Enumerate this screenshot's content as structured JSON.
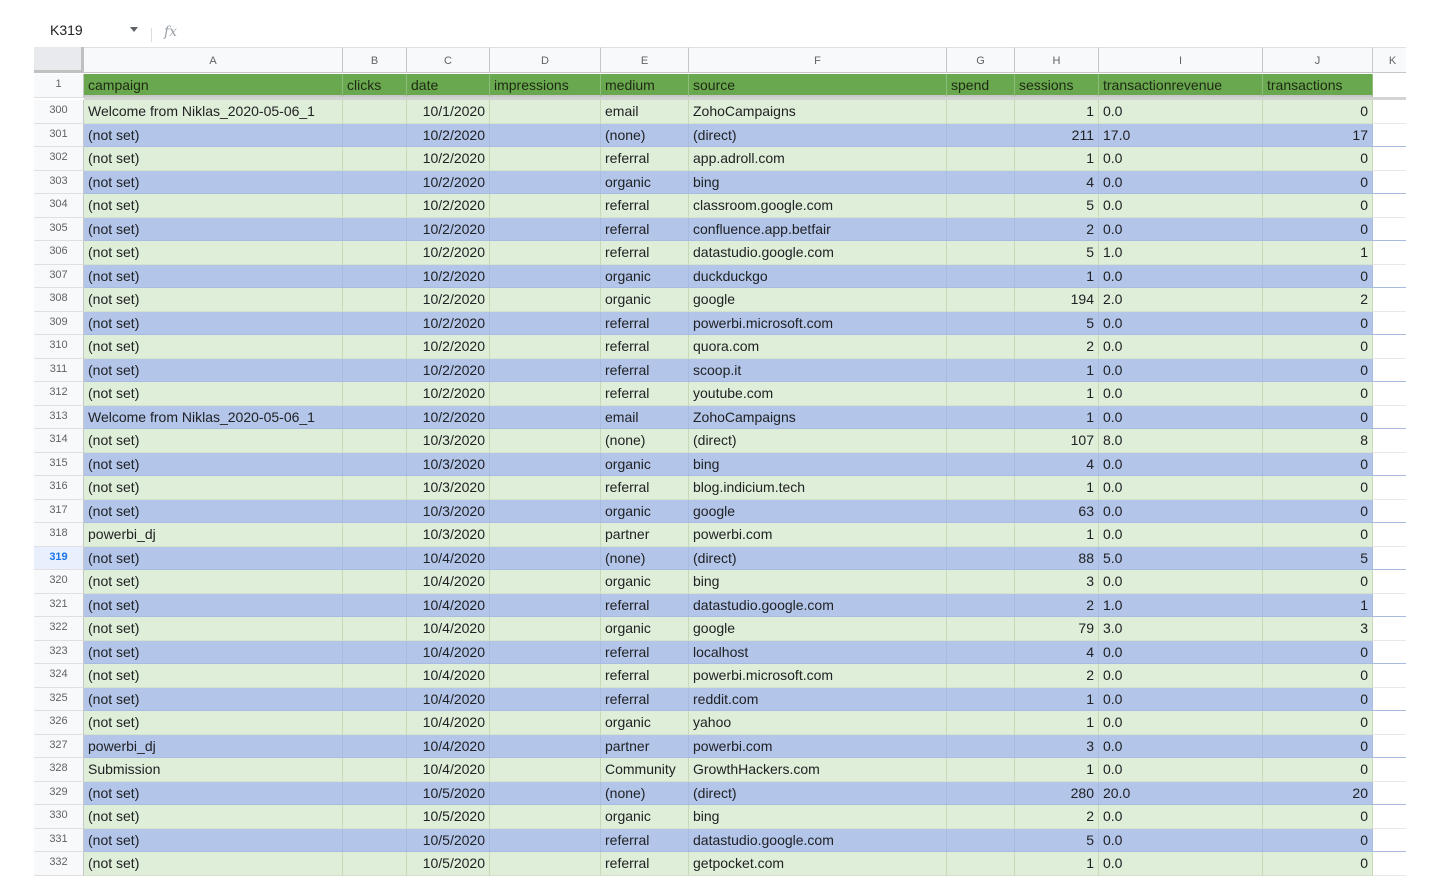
{
  "formula_bar": {
    "name_box": "K319",
    "fx": "fx"
  },
  "columns": [
    "A",
    "B",
    "C",
    "D",
    "E",
    "F",
    "G",
    "H",
    "I",
    "J",
    "K"
  ],
  "headers": [
    "campaign",
    "clicks",
    "date",
    "impressions",
    "medium",
    "source",
    "spend",
    "sessions",
    "transactionrevenue",
    "transactions"
  ],
  "header_row_number": "1",
  "selected_row": "319",
  "rows": [
    {
      "n": "300",
      "campaign": "Welcome from Niklas_2020-05-06_1",
      "date": "10/1/2020",
      "medium": "email",
      "source": "ZohoCampaigns",
      "sessions": "1",
      "revenue": "0.0",
      "transactions": "0"
    },
    {
      "n": "301",
      "campaign": "(not set)",
      "date": "10/2/2020",
      "medium": "(none)",
      "source": "(direct)",
      "sessions": "211",
      "revenue": "17.0",
      "transactions": "17"
    },
    {
      "n": "302",
      "campaign": "(not set)",
      "date": "10/2/2020",
      "medium": "referral",
      "source": "app.adroll.com",
      "sessions": "1",
      "revenue": "0.0",
      "transactions": "0"
    },
    {
      "n": "303",
      "campaign": "(not set)",
      "date": "10/2/2020",
      "medium": "organic",
      "source": "bing",
      "sessions": "4",
      "revenue": "0.0",
      "transactions": "0"
    },
    {
      "n": "304",
      "campaign": "(not set)",
      "date": "10/2/2020",
      "medium": "referral",
      "source": "classroom.google.com",
      "sessions": "5",
      "revenue": "0.0",
      "transactions": "0"
    },
    {
      "n": "305",
      "campaign": "(not set)",
      "date": "10/2/2020",
      "medium": "referral",
      "source": "confluence.app.betfair",
      "sessions": "2",
      "revenue": "0.0",
      "transactions": "0"
    },
    {
      "n": "306",
      "campaign": "(not set)",
      "date": "10/2/2020",
      "medium": "referral",
      "source": "datastudio.google.com",
      "sessions": "5",
      "revenue": "1.0",
      "transactions": "1"
    },
    {
      "n": "307",
      "campaign": "(not set)",
      "date": "10/2/2020",
      "medium": "organic",
      "source": "duckduckgo",
      "sessions": "1",
      "revenue": "0.0",
      "transactions": "0"
    },
    {
      "n": "308",
      "campaign": "(not set)",
      "date": "10/2/2020",
      "medium": "organic",
      "source": "google",
      "sessions": "194",
      "revenue": "2.0",
      "transactions": "2"
    },
    {
      "n": "309",
      "campaign": "(not set)",
      "date": "10/2/2020",
      "medium": "referral",
      "source": "powerbi.microsoft.com",
      "sessions": "5",
      "revenue": "0.0",
      "transactions": "0"
    },
    {
      "n": "310",
      "campaign": "(not set)",
      "date": "10/2/2020",
      "medium": "referral",
      "source": "quora.com",
      "sessions": "2",
      "revenue": "0.0",
      "transactions": "0"
    },
    {
      "n": "311",
      "campaign": "(not set)",
      "date": "10/2/2020",
      "medium": "referral",
      "source": "scoop.it",
      "sessions": "1",
      "revenue": "0.0",
      "transactions": "0"
    },
    {
      "n": "312",
      "campaign": "(not set)",
      "date": "10/2/2020",
      "medium": "referral",
      "source": "youtube.com",
      "sessions": "1",
      "revenue": "0.0",
      "transactions": "0"
    },
    {
      "n": "313",
      "campaign": "Welcome from Niklas_2020-05-06_1",
      "date": "10/2/2020",
      "medium": "email",
      "source": "ZohoCampaigns",
      "sessions": "1",
      "revenue": "0.0",
      "transactions": "0"
    },
    {
      "n": "314",
      "campaign": "(not set)",
      "date": "10/3/2020",
      "medium": "(none)",
      "source": "(direct)",
      "sessions": "107",
      "revenue": "8.0",
      "transactions": "8"
    },
    {
      "n": "315",
      "campaign": "(not set)",
      "date": "10/3/2020",
      "medium": "organic",
      "source": "bing",
      "sessions": "4",
      "revenue": "0.0",
      "transactions": "0"
    },
    {
      "n": "316",
      "campaign": "(not set)",
      "date": "10/3/2020",
      "medium": "referral",
      "source": "blog.indicium.tech",
      "sessions": "1",
      "revenue": "0.0",
      "transactions": "0"
    },
    {
      "n": "317",
      "campaign": "(not set)",
      "date": "10/3/2020",
      "medium": "organic",
      "source": "google",
      "sessions": "63",
      "revenue": "0.0",
      "transactions": "0"
    },
    {
      "n": "318",
      "campaign": "powerbi_dj",
      "date": "10/3/2020",
      "medium": "partner",
      "source": "powerbi.com",
      "sessions": "1",
      "revenue": "0.0",
      "transactions": "0"
    },
    {
      "n": "319",
      "campaign": "(not set)",
      "date": "10/4/2020",
      "medium": "(none)",
      "source": "(direct)",
      "sessions": "88",
      "revenue": "5.0",
      "transactions": "5"
    },
    {
      "n": "320",
      "campaign": "(not set)",
      "date": "10/4/2020",
      "medium": "organic",
      "source": "bing",
      "sessions": "3",
      "revenue": "0.0",
      "transactions": "0"
    },
    {
      "n": "321",
      "campaign": "(not set)",
      "date": "10/4/2020",
      "medium": "referral",
      "source": "datastudio.google.com",
      "sessions": "2",
      "revenue": "1.0",
      "transactions": "1"
    },
    {
      "n": "322",
      "campaign": "(not set)",
      "date": "10/4/2020",
      "medium": "organic",
      "source": "google",
      "sessions": "79",
      "revenue": "3.0",
      "transactions": "3"
    },
    {
      "n": "323",
      "campaign": "(not set)",
      "date": "10/4/2020",
      "medium": "referral",
      "source": "localhost",
      "sessions": "4",
      "revenue": "0.0",
      "transactions": "0"
    },
    {
      "n": "324",
      "campaign": "(not set)",
      "date": "10/4/2020",
      "medium": "referral",
      "source": "powerbi.microsoft.com",
      "sessions": "2",
      "revenue": "0.0",
      "transactions": "0"
    },
    {
      "n": "325",
      "campaign": "(not set)",
      "date": "10/4/2020",
      "medium": "referral",
      "source": "reddit.com",
      "sessions": "1",
      "revenue": "0.0",
      "transactions": "0"
    },
    {
      "n": "326",
      "campaign": "(not set)",
      "date": "10/4/2020",
      "medium": "organic",
      "source": "yahoo",
      "sessions": "1",
      "revenue": "0.0",
      "transactions": "0"
    },
    {
      "n": "327",
      "campaign": "powerbi_dj",
      "date": "10/4/2020",
      "medium": "partner",
      "source": "powerbi.com",
      "sessions": "3",
      "revenue": "0.0",
      "transactions": "0"
    },
    {
      "n": "328",
      "campaign": "Submission",
      "date": "10/4/2020",
      "medium": "Community",
      "source": "GrowthHackers.com",
      "sessions": "1",
      "revenue": "0.0",
      "transactions": "0"
    },
    {
      "n": "329",
      "campaign": "(not set)",
      "date": "10/5/2020",
      "medium": "(none)",
      "source": "(direct)",
      "sessions": "280",
      "revenue": "20.0",
      "transactions": "20"
    },
    {
      "n": "330",
      "campaign": "(not set)",
      "date": "10/5/2020",
      "medium": "organic",
      "source": "bing",
      "sessions": "2",
      "revenue": "0.0",
      "transactions": "0"
    },
    {
      "n": "331",
      "campaign": "(not set)",
      "date": "10/5/2020",
      "medium": "referral",
      "source": "datastudio.google.com",
      "sessions": "5",
      "revenue": "0.0",
      "transactions": "0"
    },
    {
      "n": "332",
      "campaign": "(not set)",
      "date": "10/5/2020",
      "medium": "referral",
      "source": "getpocket.com",
      "sessions": "1",
      "revenue": "0.0",
      "transactions": "0"
    }
  ]
}
